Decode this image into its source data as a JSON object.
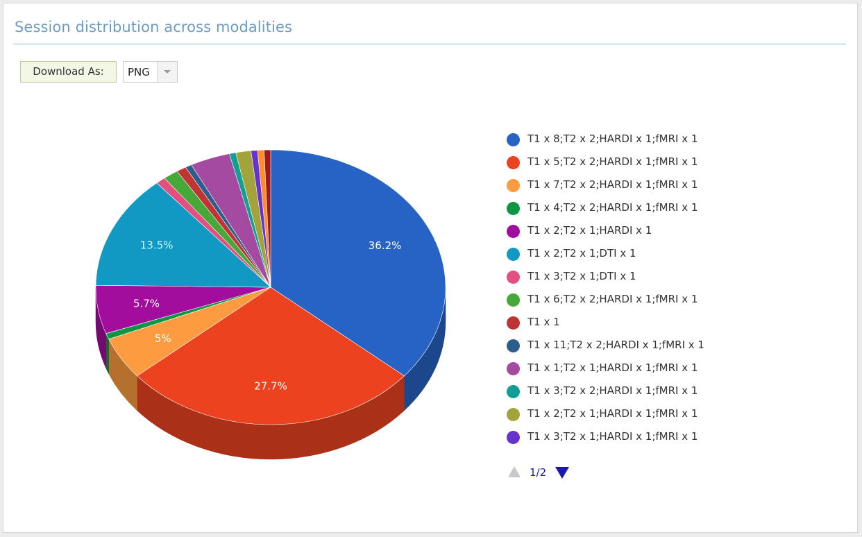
{
  "header": {
    "title": "Session distribution across modalities",
    "download_label": "Download As:",
    "download_format": "PNG"
  },
  "chart_data": {
    "type": "pie",
    "title": "Session distribution across modalities",
    "slices": [
      {
        "name": "T1 x 8;T2 x 2;HARDI x 1;fMRI x 1",
        "value": 36.2,
        "label": "36.2%",
        "color": "#2763c4"
      },
      {
        "name": "T1 x 5;T2 x 2;HARDI x 1;fMRI x 1",
        "value": 27.7,
        "label": "27.7%",
        "color": "#ec4220"
      },
      {
        "name": "T1 x 7;T2 x 2;HARDI x 1;fMRI x 1",
        "value": 5.0,
        "label": "5%",
        "color": "#fc9b3f"
      },
      {
        "name": "T1 x 4;T2 x 2;HARDI x 1;fMRI x 1",
        "value": 0.7,
        "label": "",
        "color": "#0f9642"
      },
      {
        "name": "T1 x 2;T2 x 1;HARDI x 1",
        "value": 5.7,
        "label": "5.7%",
        "color": "#a20d9e"
      },
      {
        "name": "T1 x 2;T2 x 1;DTI x 1",
        "value": 13.5,
        "label": "13.5%",
        "color": "#1199c4"
      },
      {
        "name": "T1 x 3;T2 x 1;DTI x 1",
        "value": 0.9,
        "label": "",
        "color": "#e34f7e"
      },
      {
        "name": "T1 x 6;T2 x 2;HARDI x 1;fMRI x 1",
        "value": 1.4,
        "label": "",
        "color": "#47a83a"
      },
      {
        "name": "T1 x 1",
        "value": 0.9,
        "label": "",
        "color": "#c23434"
      },
      {
        "name": "T1 x 11;T2 x 2;HARDI x 1;fMRI x 1",
        "value": 0.6,
        "label": "",
        "color": "#2d5d8c"
      },
      {
        "name": "T1 x 1;T2 x 1;HARDI x 1;fMRI x 1",
        "value": 3.7,
        "label": "",
        "color": "#a44aa0"
      },
      {
        "name": "T1 x 3;T2 x 2;HARDI x 1;fMRI x 1",
        "value": 0.6,
        "label": "",
        "color": "#109e95"
      },
      {
        "name": "T1 x 2;T2 x 1;HARDI x 1;fMRI x 1",
        "value": 1.4,
        "label": "",
        "color": "#a3a33b"
      },
      {
        "name": "T1 x 3;T2 x 1;HARDI x 1;fMRI x 1",
        "value": 0.6,
        "label": "",
        "color": "#6634cc"
      },
      {
        "name": "",
        "value": 0.6,
        "label": "",
        "color": "#fc8e30"
      },
      {
        "name": "",
        "value": 0.6,
        "label": "",
        "color": "#a11919"
      }
    ],
    "legend": {
      "position": "right",
      "page": "1/2"
    }
  }
}
